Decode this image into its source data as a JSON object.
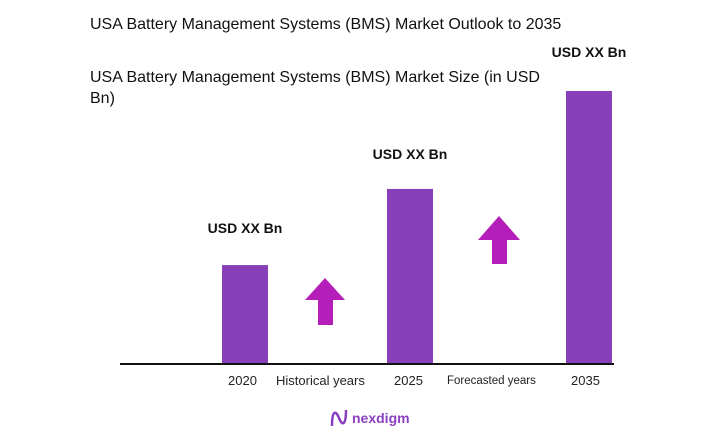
{
  "title": "USA Battery Management Systems (BMS) Market Outlook to 2035",
  "subtitle": "USA Battery Management Systems (BMS) Market Size (in USD Bn)",
  "chart_data": {
    "type": "bar",
    "title": "USA Battery Management Systems (BMS) Market Outlook to 2035",
    "subtitle": "USA Battery Management Systems (BMS) Market Size (in USD Bn)",
    "categories": [
      "2020",
      "2025",
      "2035"
    ],
    "values_relative_percent": [
      36,
      64,
      100
    ],
    "data_labels": [
      "USD XX Bn",
      "USD XX Bn",
      "USD XX Bn"
    ],
    "annotations": [
      "Historical years",
      "Forecasted years"
    ],
    "grid": false,
    "bar_color": "#8740b8",
    "arrow_color": "#b41fb9"
  },
  "logo": "nexdigm"
}
